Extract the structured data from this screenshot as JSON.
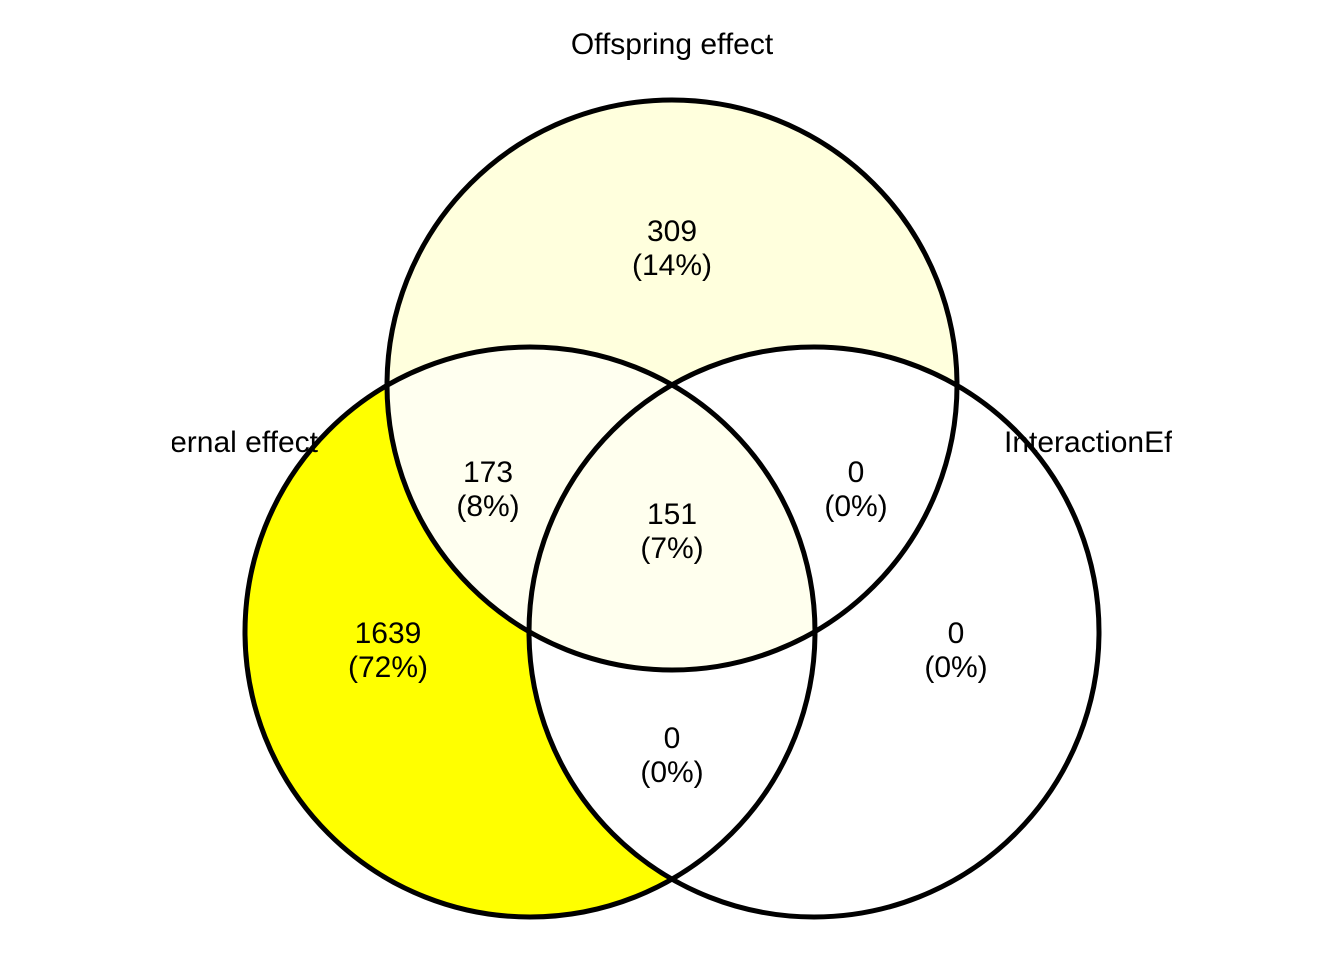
{
  "sets": {
    "maternal": {
      "label": "Maternal effect",
      "color": "#ffff00"
    },
    "offspring": {
      "label": "Offspring effect",
      "color": "#ffffdd"
    },
    "interaction": {
      "label": "InteractionEffect",
      "color": "#ffffff"
    }
  },
  "regions": {
    "maternal_only": {
      "count": "1639",
      "percent": "(72%)",
      "fill": "#ffff00"
    },
    "offspring_only": {
      "count": "309",
      "percent": "(14%)",
      "fill": "#ffffdd"
    },
    "interaction_only": {
      "count": "0",
      "percent": "(0%)",
      "fill": "#ffffff"
    },
    "maternal_offspring": {
      "count": "173",
      "percent": "(8%)",
      "fill": "#fffff0"
    },
    "maternal_interaction": {
      "count": "0",
      "percent": "(0%)",
      "fill": "#ffffff"
    },
    "offspring_interaction": {
      "count": "0",
      "percent": "(0%)",
      "fill": "#ffffff"
    },
    "all_three": {
      "count": "151",
      "percent": "(7%)",
      "fill": "#ffffee"
    }
  },
  "outline_color": "#000000"
}
